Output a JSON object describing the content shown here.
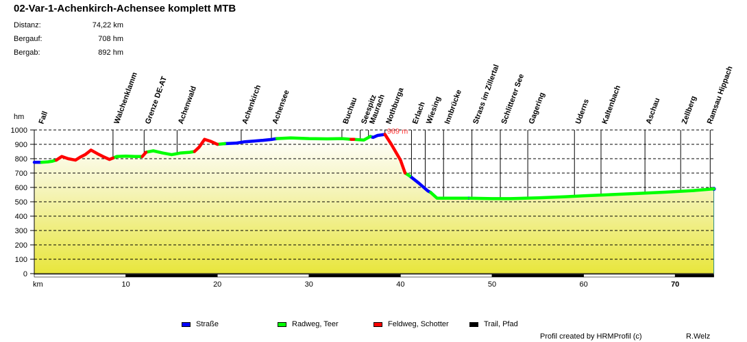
{
  "header": {
    "title": "02-Var-1-Achenkirch-Achensee komplett MTB",
    "stats": [
      {
        "label": "Distanz:",
        "value": "74,22 km"
      },
      {
        "label": "Bergauf:",
        "value": "708 hm"
      },
      {
        "label": "Bergab:",
        "value": "892 hm"
      }
    ]
  },
  "legend": [
    {
      "label": "Straße",
      "color": "#0000ff"
    },
    {
      "label": "Radweg, Teer",
      "color": "#00ff00"
    },
    {
      "label": "Feldweg, Schotter",
      "color": "#ff0000"
    },
    {
      "label": "Trail, Pfad",
      "color": "#000000"
    }
  ],
  "footer": {
    "credit": "Profil created by HRMProfil (c)",
    "author": "R.Welz"
  },
  "chart_data": {
    "type": "area",
    "title": "02-Var-1-Achenkirch-Achensee komplett MTB",
    "xlabel": "km",
    "ylabel": "hm",
    "xlim": [
      0,
      74.22
    ],
    "ylim": [
      0,
      1000
    ],
    "x_ticks": [
      10,
      20,
      30,
      40,
      50,
      60,
      70
    ],
    "y_ticks": [
      0,
      100,
      200,
      300,
      400,
      500,
      600,
      700,
      800,
      900,
      1000
    ],
    "grid": "horizontal dashed",
    "max_annotation": {
      "label": "969 m",
      "km": 38.3,
      "elevation": 969,
      "color": "#ff3333"
    },
    "waypoints": [
      {
        "name": "Fall",
        "km": 0.0
      },
      {
        "name": "Walchenklamm",
        "km": 8.6
      },
      {
        "name": "Grenze DE-AT",
        "km": 12.0
      },
      {
        "name": "Achenwald",
        "km": 15.6
      },
      {
        "name": "Achenkirch",
        "km": 22.6
      },
      {
        "name": "Achensee",
        "km": 25.9
      },
      {
        "name": "Buchau",
        "km": 33.6
      },
      {
        "name": "Seespitz",
        "km": 35.6
      },
      {
        "name": "Maurach",
        "km": 36.5
      },
      {
        "name": "Nothburga",
        "km": 38.3
      },
      {
        "name": "Erlach",
        "km": 41.2
      },
      {
        "name": "Wiesing",
        "km": 42.7
      },
      {
        "name": "Innbrücke",
        "km": 44.7
      },
      {
        "name": "Strass im Zillertal",
        "km": 47.8
      },
      {
        "name": "Schlitterer See",
        "km": 50.9
      },
      {
        "name": "Gagering",
        "km": 53.9
      },
      {
        "name": "Uderns",
        "km": 59.0
      },
      {
        "name": "Kaltenbach",
        "km": 61.9
      },
      {
        "name": "Aschau",
        "km": 66.7
      },
      {
        "name": "Zellberg",
        "km": 70.6
      },
      {
        "name": "Ramsau Hippach",
        "km": 74.2
      }
    ],
    "series": [
      {
        "name": "Straße",
        "color": "#0000ff",
        "segments": [
          [
            [
              0,
              775
            ],
            [
              0.8,
              775
            ]
          ],
          [
            [
              20.8,
              905
            ],
            [
              22,
              908
            ],
            [
              23,
              918
            ],
            [
              24,
              923
            ],
            [
              25,
              928
            ],
            [
              26,
              935
            ],
            [
              26.5,
              940
            ]
          ],
          [
            [
              36.7,
              955
            ],
            [
              37,
              948
            ],
            [
              37.5,
              962
            ],
            [
              38.3,
              969
            ]
          ],
          [
            [
              41,
              680
            ],
            [
              42,
              630
            ],
            [
              43,
              575
            ],
            [
              43.3,
              565
            ]
          ],
          [
            [
              47.3,
              525
            ],
            [
              47.6,
              525
            ]
          ],
          [
            [
              74.22,
              590
            ]
          ]
        ]
      },
      {
        "name": "Radweg, Teer",
        "color": "#00ff00",
        "segments": [
          [
            [
              0.8,
              775
            ],
            [
              1.5,
              778
            ],
            [
              2,
              783
            ],
            [
              2.4,
              790
            ]
          ],
          [
            [
              8.6,
              805
            ],
            [
              9,
              815
            ],
            [
              10,
              818
            ],
            [
              11,
              815
            ],
            [
              11.8,
              815
            ]
          ],
          [
            [
              12.2,
              845
            ],
            [
              13,
              855
            ],
            [
              14,
              840
            ],
            [
              15,
              828
            ],
            [
              16,
              840
            ],
            [
              17,
              845
            ],
            [
              17.5,
              850
            ]
          ],
          [
            [
              20,
              900
            ],
            [
              20.8,
              905
            ]
          ],
          [
            [
              26.5,
              940
            ],
            [
              28,
              945
            ],
            [
              30,
              940
            ],
            [
              32,
              938
            ],
            [
              33.6,
              940
            ],
            [
              34.6,
              935
            ]
          ],
          [
            [
              34.9,
              935
            ],
            [
              36,
              930
            ],
            [
              36.7,
              955
            ]
          ],
          [
            [
              40.5,
              700
            ],
            [
              41,
              680
            ]
          ],
          [
            [
              43.3,
              565
            ],
            [
              44,
              525
            ],
            [
              46,
              525
            ],
            [
              47.3,
              525
            ]
          ],
          [
            [
              47.6,
              525
            ],
            [
              50,
              522
            ],
            [
              52,
              522
            ],
            [
              55,
              527
            ],
            [
              58,
              535
            ],
            [
              60,
              542
            ],
            [
              63,
              550
            ],
            [
              66,
              558
            ],
            [
              69,
              567
            ],
            [
              72,
              578
            ],
            [
              74.22,
              590
            ]
          ]
        ]
      },
      {
        "name": "Feldweg, Schotter",
        "color": "#ff0000",
        "segments": [
          [
            [
              2.4,
              790
            ],
            [
              3,
              815
            ],
            [
              3.7,
              800
            ],
            [
              4.5,
              790
            ],
            [
              5,
              810
            ],
            [
              5.6,
              830
            ],
            [
              6.2,
              860
            ],
            [
              6.9,
              835
            ],
            [
              7.5,
              815
            ],
            [
              8.2,
              795
            ],
            [
              8.6,
              805
            ]
          ],
          [
            [
              11.8,
              815
            ],
            [
              12.2,
              845
            ]
          ],
          [
            [
              17.5,
              850
            ],
            [
              18,
              880
            ],
            [
              18.6,
              935
            ],
            [
              19.3,
              920
            ],
            [
              20,
              900
            ]
          ],
          [
            [
              34.6,
              935
            ],
            [
              34.9,
              935
            ]
          ],
          [
            [
              38.3,
              969
            ],
            [
              39,
              900
            ],
            [
              40,
              790
            ],
            [
              40.5,
              700
            ]
          ]
        ]
      },
      {
        "name": "Trail, Pfad",
        "color": "#000000",
        "segments": []
      }
    ]
  }
}
